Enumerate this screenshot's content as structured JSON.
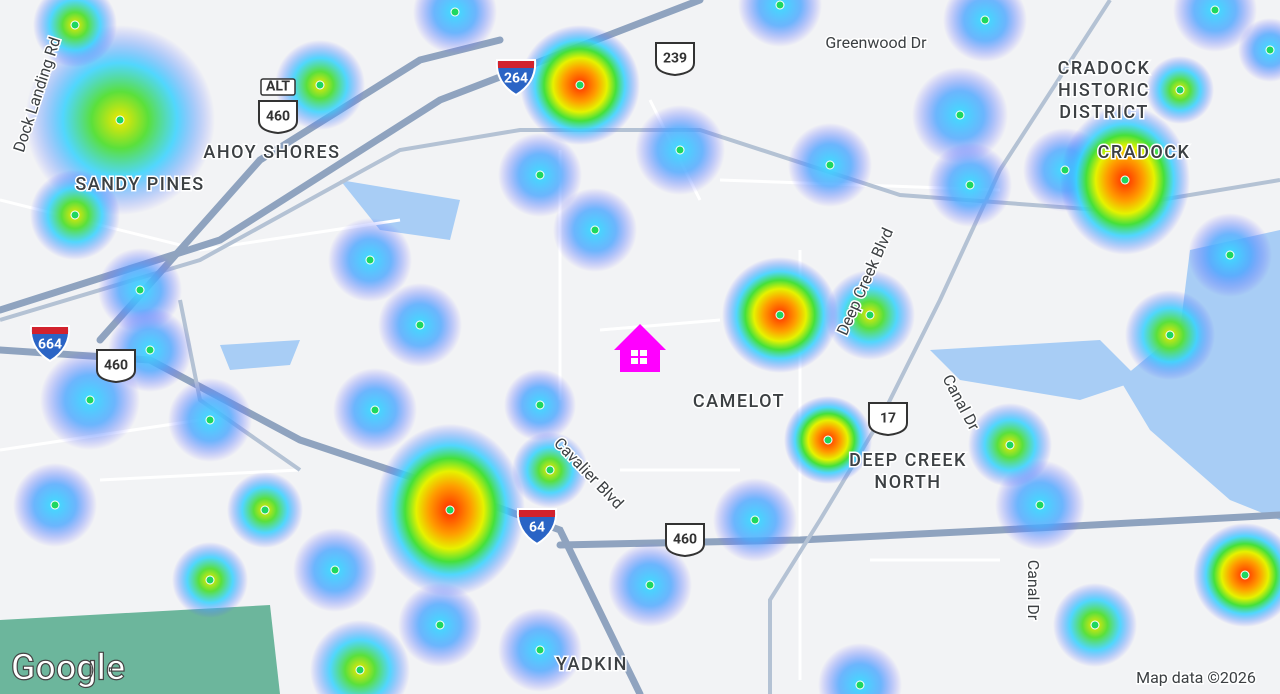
{
  "map": {
    "place_labels": [
      "SANDY PINES",
      "AHOY SHORES",
      "CRADOCK",
      "HISTORIC",
      "DISTRICT",
      "CRADOCK",
      "CAMELOT",
      "DEEP CREEK",
      "NORTH",
      "YADKIN"
    ],
    "road_labels": [
      "Dock Landing Rd",
      "Greenwood Dr",
      "Deep Creek Blvd",
      "Canal Dr",
      "Cavalier Blvd",
      "Canal Dr"
    ],
    "shields": [
      "ALT",
      "460",
      "264",
      "239",
      "664",
      "460",
      "17",
      "64",
      "460"
    ],
    "logo": "Google",
    "attribution": "Map data ©2026"
  }
}
